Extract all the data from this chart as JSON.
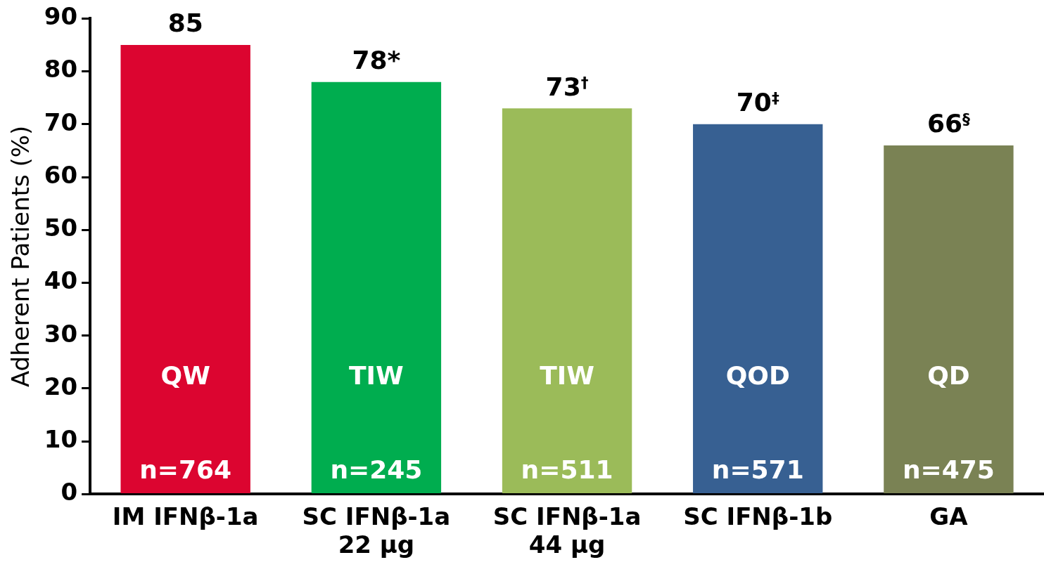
{
  "chart_data": {
    "type": "bar",
    "ylabel": "Adherent Patients (%)",
    "categories": [
      "IM IFNβ-1a",
      "SC IFNβ-1a\n22 µg",
      "SC IFNβ-1a\n44 µg",
      "SC IFNβ-1b",
      "GA"
    ],
    "values": [
      85,
      78,
      73,
      70,
      66
    ],
    "value_labels": [
      "85",
      "78*",
      "73$^{†}$",
      "70$^{‡}$",
      "66$^{§}$"
    ],
    "colors": [
      "#dc0530",
      "#00ad4f",
      "#9bbb59",
      "#376092",
      "#7a8254"
    ],
    "ylim": [
      0,
      90
    ],
    "yticks": [
      0,
      10,
      20,
      30,
      40,
      50,
      60,
      70,
      80,
      90
    ],
    "grid": false,
    "legend": false,
    "annotations": [
      "QW",
      "TIW",
      "TIW",
      "QOD",
      "QD",
      "n=764",
      "n=245",
      "n=511",
      "n=571",
      "n=475"
    ]
  }
}
